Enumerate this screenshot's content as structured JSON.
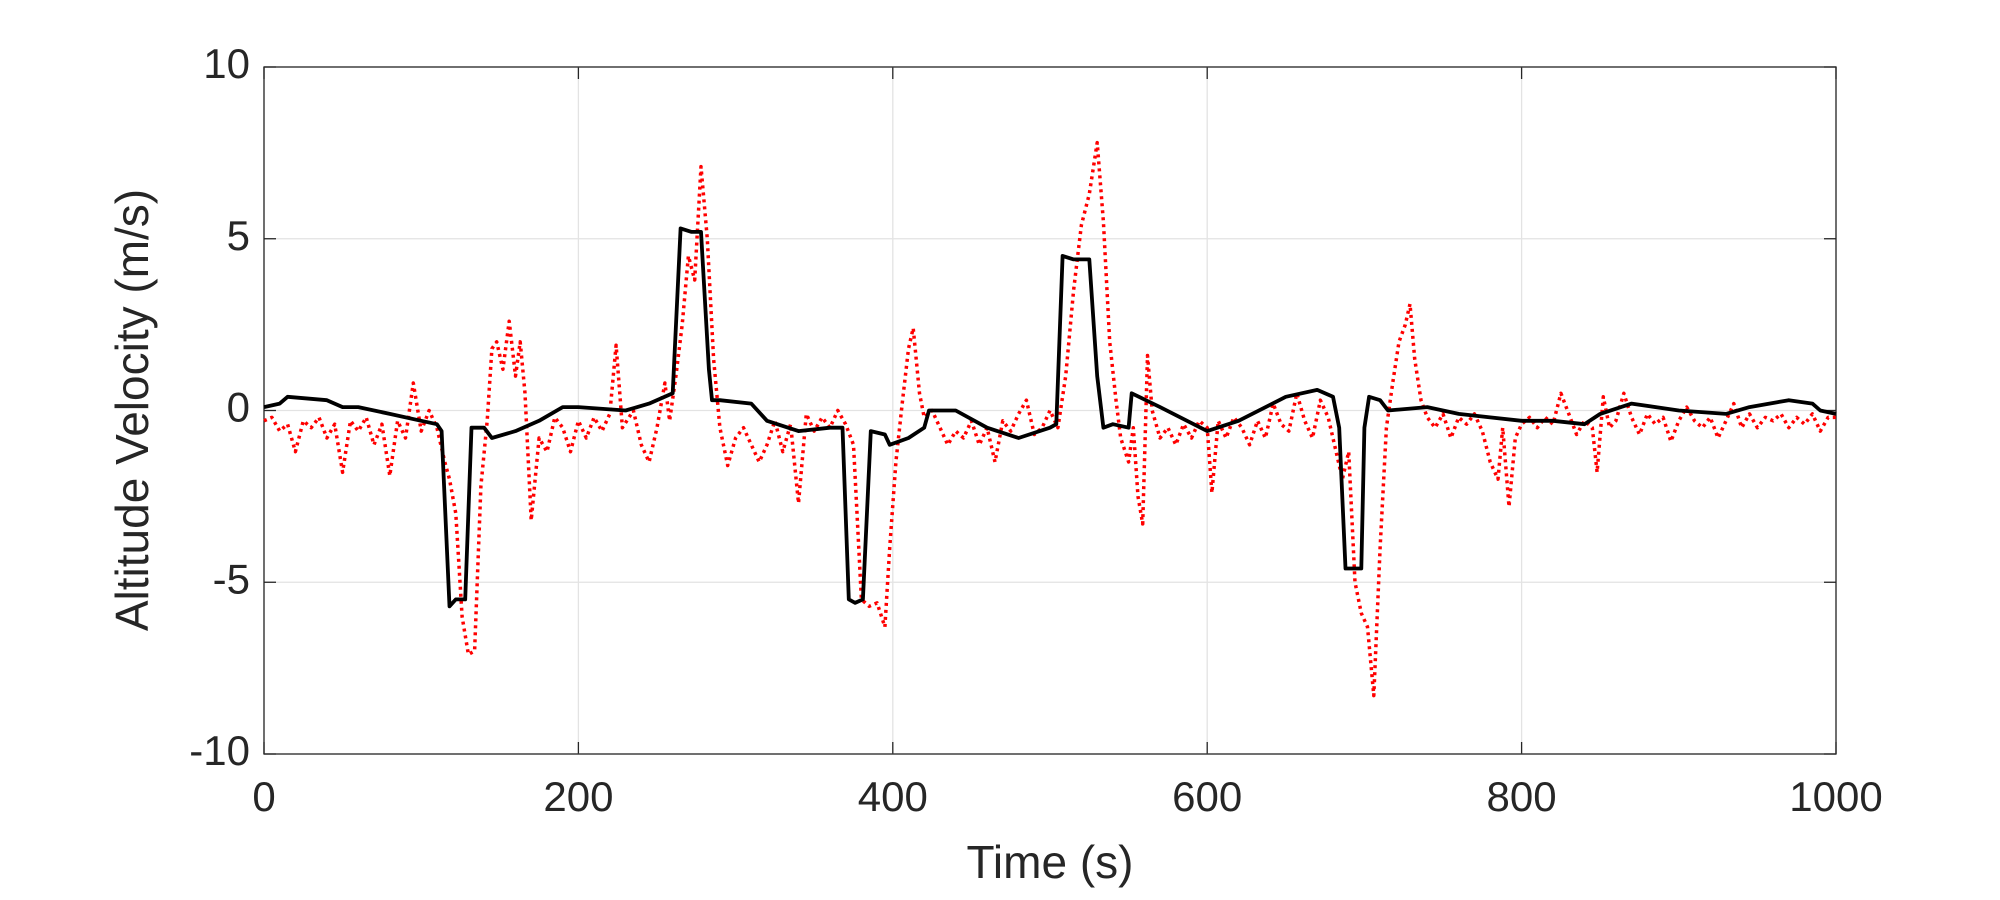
{
  "chart_data": {
    "type": "line",
    "xlabel": "Time (s)",
    "ylabel": "Altitude Velocity (m/s)",
    "xlim": [
      0,
      1000
    ],
    "xticks": [
      0,
      200,
      400,
      600,
      800,
      1000
    ],
    "ylim": [
      -10,
      10
    ],
    "yticks": [
      -10,
      -5,
      0,
      5,
      10
    ],
    "grid": true,
    "series": [
      {
        "color": "#000000",
        "style": "solid",
        "x": [
          0,
          10,
          15,
          40,
          50,
          60,
          80,
          100,
          110,
          113,
          118,
          122,
          128,
          132,
          140,
          145,
          160,
          175,
          190,
          200,
          230,
          245,
          260,
          265,
          272,
          278,
          283,
          285,
          290,
          310,
          320,
          340,
          360,
          368,
          372,
          376,
          381,
          386,
          395,
          398,
          410,
          420,
          423,
          440,
          460,
          480,
          500,
          504,
          508,
          515,
          525,
          530,
          534,
          540,
          550,
          552,
          570,
          600,
          620,
          650,
          670,
          680,
          684,
          688,
          695,
          698,
          700,
          703,
          710,
          715,
          740,
          760,
          780,
          800,
          820,
          840,
          850,
          870,
          900,
          930,
          945,
          970,
          985,
          990,
          1000
        ],
        "values": [
          0.1,
          0.2,
          0.4,
          0.3,
          0.1,
          0.1,
          -0.1,
          -0.3,
          -0.4,
          -0.6,
          -5.7,
          -5.5,
          -5.5,
          -0.5,
          -0.5,
          -0.8,
          -0.6,
          -0.3,
          0.1,
          0.1,
          0,
          0.2,
          0.5,
          5.3,
          5.2,
          5.2,
          1.2,
          0.3,
          0.3,
          0.2,
          -0.3,
          -0.6,
          -0.5,
          -0.5,
          -5.5,
          -5.6,
          -5.5,
          -0.6,
          -0.7,
          -1.0,
          -0.8,
          -0.5,
          0,
          0,
          -0.5,
          -0.8,
          -0.5,
          -0.4,
          4.5,
          4.4,
          4.4,
          1.0,
          -0.5,
          -0.4,
          -0.5,
          0.5,
          0.1,
          -0.6,
          -0.3,
          0.4,
          0.6,
          0.4,
          -0.5,
          -4.6,
          -4.6,
          -4.6,
          -0.5,
          0.4,
          0.3,
          0,
          0.1,
          -0.1,
          -0.2,
          -0.3,
          -0.3,
          -0.4,
          -0.1,
          0.2,
          0,
          -0.1,
          0.1,
          0.3,
          0.2,
          0,
          -0.1
        ]
      },
      {
        "color": "#ff0000",
        "style": "dotted",
        "x": [
          0,
          5,
          10,
          15,
          20,
          25,
          30,
          35,
          40,
          45,
          50,
          55,
          60,
          65,
          70,
          75,
          80,
          85,
          90,
          95,
          100,
          105,
          110,
          115,
          118,
          122,
          126,
          130,
          134,
          138,
          142,
          145,
          148,
          152,
          156,
          160,
          163,
          166,
          170,
          175,
          180,
          185,
          190,
          195,
          200,
          205,
          210,
          215,
          220,
          224,
          228,
          235,
          240,
          245,
          250,
          255,
          258,
          262,
          266,
          270,
          274,
          278,
          282,
          286,
          290,
          295,
          300,
          305,
          310,
          315,
          320,
          325,
          330,
          335,
          340,
          345,
          350,
          355,
          360,
          365,
          370,
          375,
          380,
          385,
          390,
          395,
          398,
          402,
          406,
          410,
          413,
          417,
          420,
          425,
          430,
          435,
          440,
          445,
          450,
          455,
          460,
          465,
          470,
          475,
          480,
          485,
          490,
          495,
          500,
          505,
          510,
          515,
          520,
          525,
          530,
          534,
          538,
          542,
          545,
          550,
          553,
          556,
          559,
          562,
          565,
          570,
          575,
          580,
          585,
          590,
          595,
          600,
          603,
          607,
          612,
          617,
          622,
          627,
          632,
          637,
          642,
          647,
          652,
          657,
          662,
          667,
          672,
          677,
          682,
          686,
          690,
          694,
          698,
          702,
          706,
          710,
          714,
          718,
          722,
          726,
          729,
          732,
          736,
          740,
          745,
          750,
          755,
          760,
          765,
          770,
          775,
          780,
          785,
          788,
          792,
          796,
          800,
          805,
          810,
          815,
          820,
          825,
          830,
          835,
          840,
          845,
          848,
          852,
          856,
          860,
          865,
          870,
          875,
          880,
          885,
          890,
          895,
          900,
          905,
          910,
          915,
          920,
          925,
          930,
          935,
          940,
          945,
          950,
          955,
          960,
          965,
          970,
          975,
          980,
          985,
          990,
          995,
          1000
        ],
        "values": [
          -0.3,
          -0.2,
          -0.6,
          -0.4,
          -1.2,
          -0.3,
          -0.5,
          -0.2,
          -0.8,
          -0.4,
          -1.8,
          -0.3,
          -0.6,
          -0.2,
          -1.0,
          -0.4,
          -1.9,
          -0.3,
          -0.8,
          0.8,
          -0.6,
          0.0,
          -0.5,
          -1.5,
          -2.0,
          -3.0,
          -6.0,
          -7.1,
          -7.0,
          -2.2,
          -0.3,
          1.8,
          2.0,
          1.2,
          2.6,
          1.0,
          2.0,
          0.5,
          -3.2,
          -0.8,
          -1.2,
          -0.2,
          -0.5,
          -1.2,
          -0.3,
          -0.8,
          -0.2,
          -0.6,
          -0.1,
          1.9,
          -0.5,
          0.0,
          -1.0,
          -1.5,
          -0.5,
          0.8,
          -0.3,
          1.0,
          2.5,
          4.5,
          3.8,
          7.1,
          5.0,
          1.5,
          -0.5,
          -1.6,
          -0.8,
          -0.5,
          -1.0,
          -1.5,
          -1.0,
          -0.3,
          -1.2,
          -0.4,
          -2.7,
          -0.1,
          -0.6,
          -0.2,
          -0.5,
          0,
          -0.4,
          -1.0,
          -5.5,
          -5.7,
          -5.6,
          -6.3,
          -4.0,
          -1.5,
          0.2,
          1.8,
          2.4,
          0.5,
          -0.2,
          0.0,
          -0.5,
          -1.0,
          -0.6,
          -0.8,
          -0.3,
          -1.0,
          -0.5,
          -1.5,
          -0.3,
          -0.6,
          -0.1,
          0.3,
          -0.7,
          -0.5,
          0.0,
          -0.5,
          1.0,
          3.5,
          5.4,
          6.3,
          7.8,
          5.5,
          2.0,
          0.3,
          -0.8,
          -1.5,
          -0.5,
          -2.5,
          -3.3,
          1.6,
          0,
          -0.8,
          -0.5,
          -1.0,
          -0.4,
          -0.8,
          -0.3,
          -0.5,
          -2.4,
          -0.3,
          -0.8,
          -0.2,
          -0.5,
          -1.0,
          -0.3,
          -0.8,
          0.2,
          -0.4,
          -0.6,
          0.5,
          -0.3,
          -0.8,
          0.3,
          -0.2,
          -1.2,
          -2.0,
          -1.2,
          -5.0,
          -5.9,
          -6.3,
          -8.3,
          -4.0,
          -0.5,
          0.8,
          2.0,
          2.5,
          3.1,
          1.5,
          0.3,
          -0.2,
          -0.5,
          -0.1,
          -0.8,
          -0.2,
          -0.4,
          -0.1,
          -0.6,
          -1.5,
          -2.0,
          -0.5,
          -2.8,
          -0.8,
          -0.4,
          -0.2,
          -0.5,
          -0.2,
          -0.4,
          0.5,
          -0.1,
          -0.7,
          -0.3,
          -0.5,
          -1.8,
          0.4,
          -0.5,
          -0.3,
          0.5,
          -0.2,
          -0.7,
          -0.1,
          -0.4,
          -0.2,
          -0.9,
          -0.3,
          0.1,
          -0.3,
          -0.5,
          -0.2,
          -0.8,
          -0.3,
          0.2,
          -0.5,
          -0.1,
          -0.5,
          -0.2,
          -0.3,
          -0.1,
          -0.5,
          -0.2,
          -0.4,
          -0.1,
          -0.6,
          -0.2,
          -0.2
        ]
      }
    ]
  }
}
